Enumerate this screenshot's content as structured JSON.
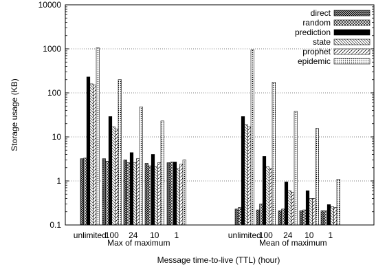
{
  "chart_data": {
    "type": "bar",
    "ylabel": "Storage usage (KB)",
    "xlabel": "Message time-to-live (TTL) (hour)",
    "yscale": "log",
    "ylim": [
      0.1,
      10000
    ],
    "yticks": [
      "0.1",
      "1",
      "10",
      "100",
      "1000",
      "10000"
    ],
    "grid": "horizontal dotted",
    "legend_position": "top-right",
    "groups": [
      {
        "label": "Max of maximum",
        "categories": [
          "unlimited",
          "100",
          "24",
          "10",
          "1"
        ]
      },
      {
        "label": "Mean of maximum",
        "categories": [
          "unlimited",
          "100",
          "24",
          "10",
          "1"
        ]
      }
    ],
    "series": [
      {
        "name": "direct",
        "pattern": "crosshatch-dense",
        "values": [
          3.2,
          3.2,
          3.0,
          2.5,
          2.6,
          0.23,
          0.22,
          0.21,
          0.21,
          0.21
        ]
      },
      {
        "name": "random",
        "pattern": "crosshatch-diamond",
        "values": [
          3.3,
          2.8,
          2.6,
          2.2,
          2.7,
          0.25,
          0.3,
          0.23,
          0.22,
          0.21
        ]
      },
      {
        "name": "prediction",
        "pattern": "solid-black",
        "values": [
          230,
          29,
          4.4,
          4.0,
          2.7,
          29,
          3.6,
          0.95,
          0.6,
          0.29
        ]
      },
      {
        "name": "state",
        "pattern": "diagonal-light",
        "values": [
          160,
          17,
          2.6,
          2.1,
          1.9,
          19,
          2.1,
          0.6,
          0.4,
          0.26
        ]
      },
      {
        "name": "prophet",
        "pattern": "diagonal-dashed",
        "values": [
          150,
          15,
          3.2,
          2.6,
          2.4,
          17,
          1.9,
          0.55,
          0.4,
          0.25
        ]
      },
      {
        "name": "epidemic",
        "pattern": "dotted-dense",
        "values": [
          1050,
          200,
          48,
          23,
          3.0,
          950,
          175,
          38,
          15.5,
          1.1
        ]
      }
    ]
  }
}
